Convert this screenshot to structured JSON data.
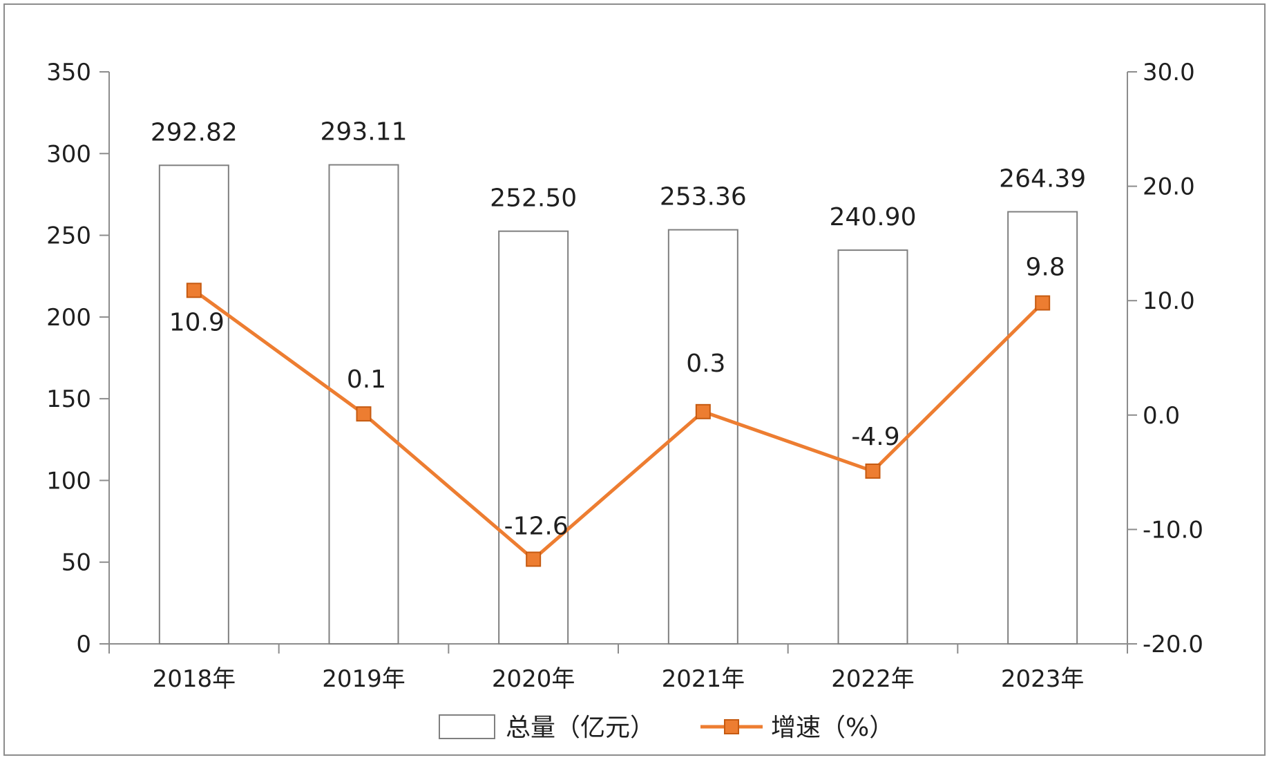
{
  "chart_data": {
    "type": "bar+line",
    "title": "",
    "xlabel": "",
    "ylabel": "",
    "y2label": "",
    "categories": [
      "2018年",
      "2019年",
      "2020年",
      "2021年",
      "2022年",
      "2023年"
    ],
    "series": [
      {
        "name": "总量（亿元）",
        "type": "bar",
        "axis": "left",
        "values": [
          292.82,
          293.11,
          252.5,
          253.36,
          240.9,
          264.39
        ],
        "labels": [
          "292.82",
          "293.11",
          "252.50",
          "253.36",
          "240.90",
          "264.39"
        ],
        "color": "#ffffff",
        "stroke": "#7f7f7f"
      },
      {
        "name": "增速（%）",
        "type": "line",
        "axis": "right",
        "marker": "square",
        "values": [
          10.9,
          0.1,
          -12.6,
          0.3,
          -4.9,
          9.8
        ],
        "labels": [
          "10.9",
          "0.1",
          "-12.6",
          "0.3",
          "-4.9",
          "9.8"
        ],
        "color": "#ed7d31"
      }
    ],
    "y_left": {
      "min": 0,
      "max": 350,
      "ticks": [
        0,
        50,
        100,
        150,
        200,
        250,
        300,
        350
      ],
      "tick_labels": [
        "0",
        "50",
        "100",
        "150",
        "200",
        "250",
        "300",
        "350"
      ]
    },
    "y_right": {
      "min": -20,
      "max": 30,
      "ticks": [
        -20,
        -10,
        0,
        10,
        20,
        30
      ],
      "tick_labels": [
        "-20.0",
        "-10.0",
        "0.0",
        "10.0",
        "20.0",
        "30.0"
      ]
    },
    "grid": false,
    "legend": "bottom"
  }
}
